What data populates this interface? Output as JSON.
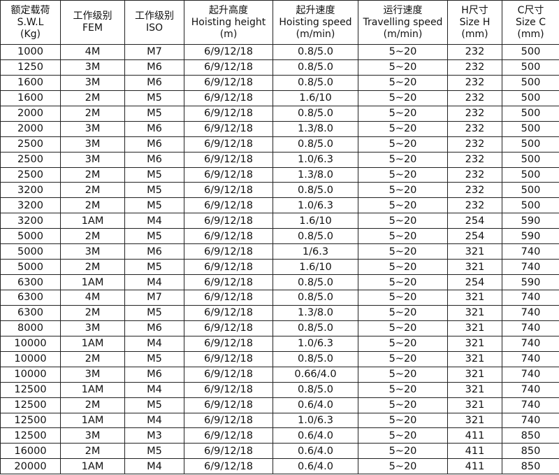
{
  "table": {
    "header": [
      [
        "额定载荷",
        "S.W.L",
        "(Kg)"
      ],
      [
        "工作级别",
        "FEM"
      ],
      [
        "工作级别",
        "ISO"
      ],
      [
        "起升高度",
        "Hoisting height",
        "(m)"
      ],
      [
        "起升速度",
        "Hoisting speed",
        "(m/min)"
      ],
      [
        "运行速度",
        "Travelling speed",
        "(m/min)"
      ],
      [
        "H尺寸",
        "Size H",
        "(mm)"
      ],
      [
        "C尺寸",
        "Size C",
        "(mm)"
      ]
    ],
    "rows": [
      [
        "1000",
        "4M",
        "M7",
        "6/9/12/18",
        "0.8/5.0",
        "5~20",
        "232",
        "500"
      ],
      [
        "1250",
        "3M",
        "M6",
        "6/9/12/18",
        "0.8/5.0",
        "5~20",
        "232",
        "500"
      ],
      [
        "1600",
        "3M",
        "M6",
        "6/9/12/18",
        "0.8/5.0",
        "5~20",
        "232",
        "500"
      ],
      [
        "1600",
        "2M",
        "M5",
        "6/9/12/18",
        "1.6/10",
        "5~20",
        "232",
        "500"
      ],
      [
        "2000",
        "2M",
        "M5",
        "6/9/12/18",
        "0.8/5.0",
        "5~20",
        "232",
        "500"
      ],
      [
        "2000",
        "3M",
        "M6",
        "6/9/12/18",
        "1.3/8.0",
        "5~20",
        "232",
        "500"
      ],
      [
        "2500",
        "3M",
        "M6",
        "6/9/12/18",
        "0.8/5.0",
        "5~20",
        "232",
        "500"
      ],
      [
        "2500",
        "3M",
        "M6",
        "6/9/12/18",
        "1.0/6.3",
        "5~20",
        "232",
        "500"
      ],
      [
        "2500",
        "2M",
        "M5",
        "6/9/12/18",
        "1.3/8.0",
        "5~20",
        "232",
        "500"
      ],
      [
        "3200",
        "2M",
        "M5",
        "6/9/12/18",
        "0.8/5.0",
        "5~20",
        "232",
        "500"
      ],
      [
        "3200",
        "2M",
        "M5",
        "6/9/12/18",
        "1.0/6.3",
        "5~20",
        "232",
        "500"
      ],
      [
        "3200",
        "1AM",
        "M4",
        "6/9/12/18",
        "1.6/10",
        "5~20",
        "254",
        "590"
      ],
      [
        "5000",
        "2M",
        "M5",
        "6/9/12/18",
        "0.8/5.0",
        "5~20",
        "254",
        "590"
      ],
      [
        "5000",
        "3M",
        "M6",
        "6/9/12/18",
        "1/6.3",
        "5~20",
        "321",
        "740"
      ],
      [
        "5000",
        "2M",
        "M5",
        "6/9/12/18",
        "1.6/10",
        "5~20",
        "321",
        "740"
      ],
      [
        "6300",
        "1AM",
        "M4",
        "6/9/12/18",
        "0.8/5.0",
        "5~20",
        "254",
        "590"
      ],
      [
        "6300",
        "4M",
        "M7",
        "6/9/12/18",
        "0.8/5.0",
        "5~20",
        "321",
        "740"
      ],
      [
        "6300",
        "2M",
        "M5",
        "6/9/12/18",
        "1.3/8.0",
        "5~20",
        "321",
        "740"
      ],
      [
        "8000",
        "3M",
        "M6",
        "6/9/12/18",
        "0.8/5.0",
        "5~20",
        "321",
        "740"
      ],
      [
        "10000",
        "1AM",
        "M4",
        "6/9/12/18",
        "1.0/6.3",
        "5~20",
        "321",
        "740"
      ],
      [
        "10000",
        "2M",
        "M5",
        "6/9/12/18",
        "0.8/5.0",
        "5~20",
        "321",
        "740"
      ],
      [
        "10000",
        "3M",
        "M6",
        "6/9/12/18",
        "0.66/4.0",
        "5~20",
        "321",
        "740"
      ],
      [
        "12500",
        "1AM",
        "M4",
        "6/9/12/18",
        "0.8/5.0",
        "5~20",
        "321",
        "740"
      ],
      [
        "12500",
        "2M",
        "M5",
        "6/9/12/18",
        "0.6/4.0",
        "5~20",
        "321",
        "740"
      ],
      [
        "12500",
        "1AM",
        "M4",
        "6/9/12/18",
        "1.0/6.3",
        "5~20",
        "321",
        "740"
      ],
      [
        "12500",
        "3M",
        "M3",
        "6/9/12/18",
        "0.6/4.0",
        "5~20",
        "411",
        "850"
      ],
      [
        "16000",
        "2M",
        "M5",
        "6/9/12/18",
        "0.6/4.0",
        "5~20",
        "411",
        "850"
      ],
      [
        "20000",
        "1AM",
        "M4",
        "6/9/12/18",
        "0.6/4.0",
        "5~20",
        "411",
        "850"
      ]
    ]
  }
}
